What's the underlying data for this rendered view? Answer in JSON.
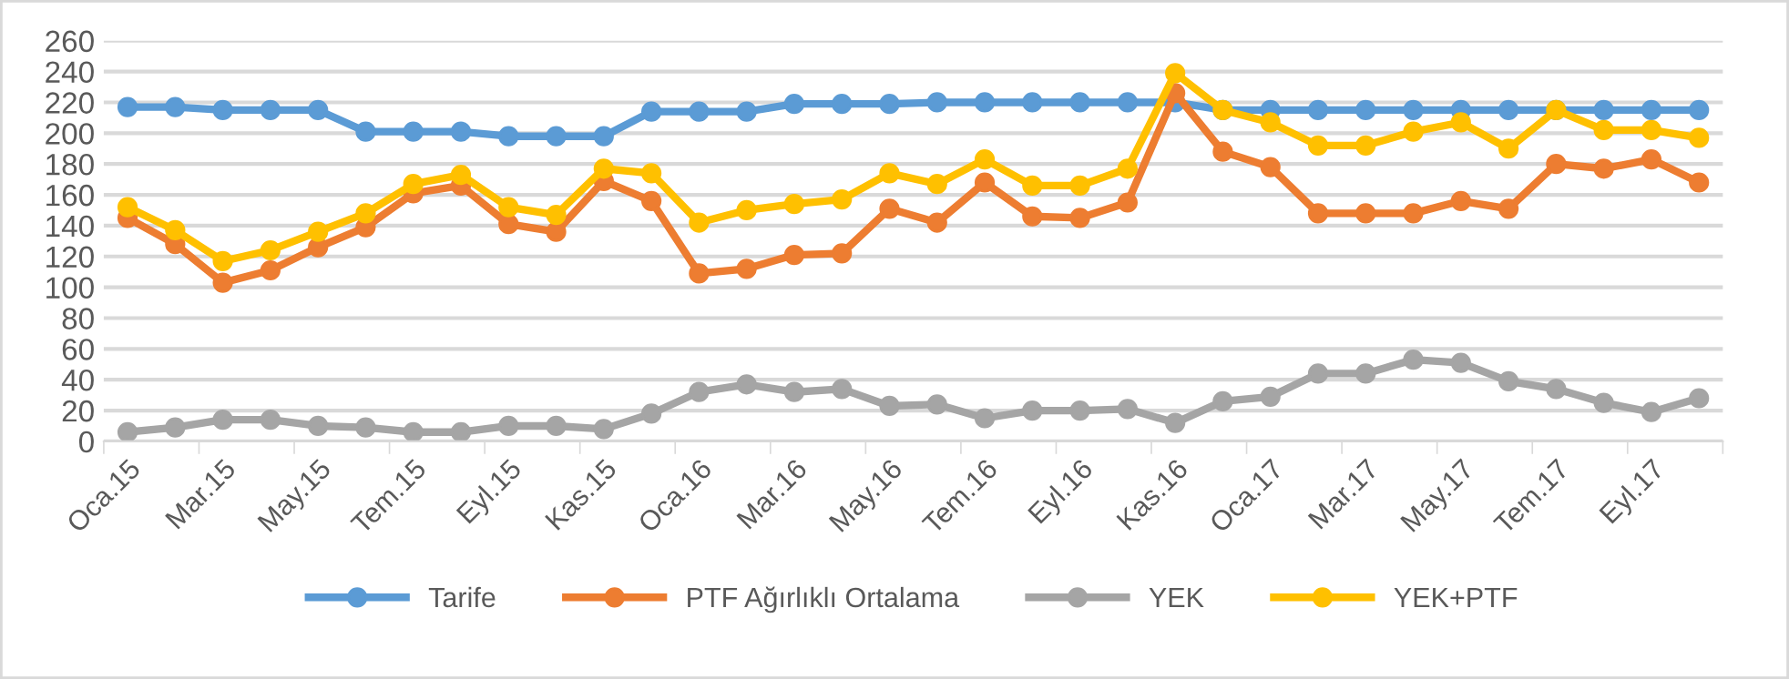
{
  "chart_data": {
    "type": "line",
    "categories": [
      "Oca.15",
      null,
      "Mar.15",
      null,
      "May.15",
      null,
      "Tem.15",
      null,
      "Eyl.15",
      null,
      "Kas.15",
      null,
      "Oca.16",
      null,
      "Mar.16",
      null,
      "May.16",
      null,
      "Tem.16",
      null,
      "Eyl.16",
      null,
      "Kas.16",
      null,
      "Oca.17",
      null,
      "Mar.17",
      null,
      "May.17",
      null,
      "Tem.17",
      null,
      "Eyl.17",
      null
    ],
    "series": [
      {
        "name": "Tarife",
        "color": "#5b9bd5",
        "values": [
          217,
          217,
          215,
          215,
          215,
          201,
          201,
          201,
          198,
          198,
          198,
          214,
          214,
          214,
          219,
          219,
          219,
          220,
          220,
          220,
          220,
          220,
          220,
          215,
          215,
          215,
          215,
          215,
          215,
          215,
          215,
          215,
          215,
          215
        ]
      },
      {
        "name": "PTF Ağırlıklı Ortalama",
        "color": "#ed7d31",
        "values": [
          145,
          128,
          103,
          111,
          126,
          139,
          161,
          166,
          141,
          136,
          169,
          156,
          109,
          112,
          121,
          122,
          151,
          142,
          168,
          146,
          145,
          155,
          226,
          188,
          178,
          148,
          148,
          148,
          156,
          151,
          180,
          177,
          183,
          168
        ]
      },
      {
        "name": "YEK",
        "color": "#a5a5a5",
        "values": [
          6,
          9,
          14,
          14,
          10,
          9,
          6,
          6,
          10,
          10,
          8,
          18,
          32,
          37,
          32,
          34,
          23,
          24,
          15,
          20,
          20,
          21,
          12,
          26,
          29,
          44,
          44,
          53,
          51,
          39,
          34,
          25,
          19,
          28
        ]
      },
      {
        "name": "YEK+PTF",
        "color": "#ffc000",
        "values": [
          152,
          137,
          117,
          124,
          136,
          148,
          167,
          173,
          152,
          147,
          177,
          174,
          142,
          150,
          154,
          157,
          174,
          167,
          183,
          166,
          166,
          177,
          239,
          215,
          207,
          192,
          192,
          201,
          207,
          190,
          215,
          202,
          202,
          197
        ]
      }
    ],
    "ylim": [
      0,
      260
    ],
    "yticks": [
      0,
      20,
      40,
      60,
      80,
      100,
      120,
      140,
      160,
      180,
      200,
      220,
      240,
      260
    ],
    "grid": "y",
    "legend": "bottom",
    "marker": "circle",
    "line_style": "solid"
  }
}
